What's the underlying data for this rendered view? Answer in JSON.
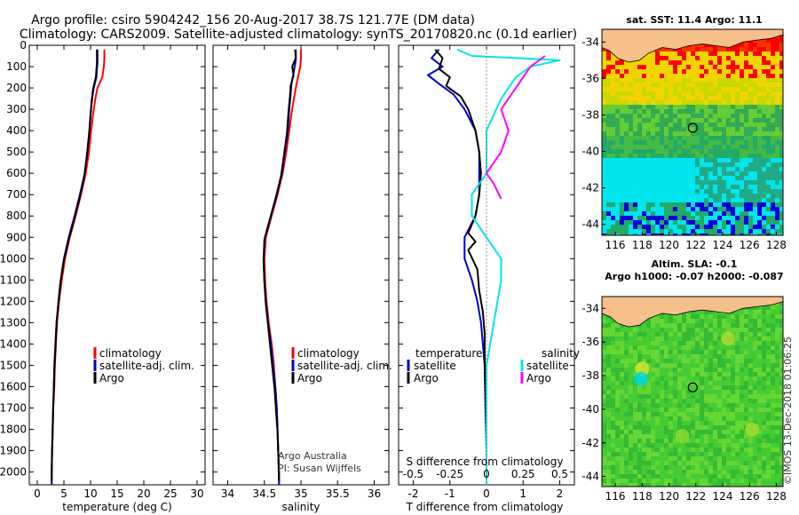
{
  "header": {
    "line1": "Argo profile: csiro 5904242_156 20-Aug-2017 38.7S 121.77E (DM data)",
    "line2": "Climatology: CARS2009. Satellite-adjusted climatology: synTS_20170820.nc (0.1d earlier)"
  },
  "colors": {
    "climatology": "#ff0000",
    "satellite": "#0000cc",
    "argo": "#000000",
    "salinity_satellite": "#00e5ee",
    "salinity_argo": "#ff00ff",
    "land": "#f5c08a"
  },
  "depth_axis": {
    "ticks": [
      0,
      100,
      200,
      300,
      400,
      500,
      600,
      700,
      800,
      900,
      1000,
      1100,
      1200,
      1300,
      1400,
      1500,
      1600,
      1700,
      1800,
      1900,
      2000
    ],
    "range": [
      2060,
      0
    ]
  },
  "chart_data": [
    {
      "type": "line",
      "id": "temperature",
      "xlabel": "temperature (deg C)",
      "xticks": [
        0,
        5,
        10,
        15,
        20,
        25,
        30
      ],
      "xlim": [
        -1.5,
        31.5
      ],
      "legend": [
        "climatology",
        "satellite-adj. clim.",
        "Argo"
      ],
      "series": [
        {
          "name": "climatology",
          "color": "#ff0000",
          "points": [
            [
              12.6,
              20
            ],
            [
              12.6,
              60
            ],
            [
              12.5,
              100
            ],
            [
              12.2,
              150
            ],
            [
              11.3,
              200
            ],
            [
              10.9,
              250
            ],
            [
              10.5,
              320
            ],
            [
              10.1,
              400
            ],
            [
              9.7,
              500
            ],
            [
              9.1,
              600
            ],
            [
              8.2,
              700
            ],
            [
              7.2,
              800
            ],
            [
              6.1,
              900
            ],
            [
              5.2,
              1000
            ],
            [
              4.6,
              1100
            ],
            [
              4.1,
              1200
            ],
            [
              3.7,
              1300
            ],
            [
              3.5,
              1400
            ],
            [
              3.3,
              1500
            ],
            [
              3.2,
              1600
            ],
            [
              3.0,
              1700
            ],
            [
              2.9,
              1800
            ],
            [
              2.8,
              1900
            ],
            [
              2.7,
              2000
            ],
            [
              2.7,
              2060
            ]
          ]
        },
        {
          "name": "satellite-adj. clim.",
          "color": "#0000cc",
          "points": [
            [
              11.3,
              20
            ],
            [
              11.3,
              80
            ],
            [
              11.1,
              150
            ],
            [
              10.6,
              200
            ],
            [
              10.3,
              250
            ],
            [
              10.0,
              320
            ],
            [
              9.8,
              400
            ],
            [
              9.4,
              500
            ],
            [
              8.9,
              600
            ],
            [
              8.0,
              700
            ],
            [
              7.0,
              800
            ],
            [
              5.9,
              900
            ],
            [
              5.0,
              1000
            ],
            [
              4.4,
              1100
            ],
            [
              4.0,
              1200
            ],
            [
              3.6,
              1300
            ],
            [
              3.4,
              1400
            ],
            [
              3.2,
              1500
            ],
            [
              3.1,
              1600
            ],
            [
              3.0,
              1700
            ],
            [
              2.9,
              1800
            ],
            [
              2.8,
              1900
            ],
            [
              2.7,
              2000
            ],
            [
              2.7,
              2060
            ]
          ]
        },
        {
          "name": "Argo",
          "color": "#000000",
          "points": [
            [
              11.2,
              20
            ],
            [
              11.2,
              80
            ],
            [
              11.0,
              150
            ],
            [
              10.5,
              200
            ],
            [
              10.2,
              260
            ],
            [
              10.0,
              330
            ],
            [
              9.7,
              420
            ],
            [
              9.3,
              520
            ],
            [
              8.8,
              620
            ],
            [
              7.9,
              720
            ],
            [
              6.9,
              820
            ],
            [
              5.8,
              920
            ],
            [
              4.9,
              1020
            ],
            [
              4.3,
              1120
            ],
            [
              3.9,
              1220
            ],
            [
              3.6,
              1320
            ],
            [
              3.4,
              1420
            ],
            [
              3.2,
              1520
            ],
            [
              3.1,
              1620
            ],
            [
              2.95,
              1720
            ],
            [
              2.85,
              1820
            ],
            [
              2.75,
              1920
            ],
            [
              2.7,
              2040
            ]
          ]
        }
      ]
    },
    {
      "type": "line",
      "id": "salinity",
      "xlabel": "salinity",
      "xticks": [
        34,
        34.5,
        35,
        35.5,
        36
      ],
      "xticklabels": [
        "34",
        "34.5",
        "35",
        "35.5",
        "36"
      ],
      "xlim": [
        33.8,
        36.2
      ],
      "legend": [
        "climatology",
        "satellite-adj. clim.",
        "Argo"
      ],
      "series": [
        {
          "name": "climatology",
          "color": "#ff0000",
          "points": [
            [
              35.0,
              20
            ],
            [
              35.0,
              60
            ],
            [
              34.99,
              100
            ],
            [
              34.96,
              150
            ],
            [
              34.93,
              200
            ],
            [
              34.9,
              260
            ],
            [
              34.87,
              320
            ],
            [
              34.84,
              400
            ],
            [
              34.8,
              500
            ],
            [
              34.75,
              600
            ],
            [
              34.68,
              700
            ],
            [
              34.6,
              800
            ],
            [
              34.52,
              900
            ],
            [
              34.5,
              1000
            ],
            [
              34.51,
              1100
            ],
            [
              34.53,
              1200
            ],
            [
              34.56,
              1300
            ],
            [
              34.6,
              1400
            ],
            [
              34.63,
              1500
            ],
            [
              34.65,
              1600
            ],
            [
              34.67,
              1700
            ],
            [
              34.68,
              1800
            ],
            [
              34.69,
              1900
            ],
            [
              34.7,
              2000
            ],
            [
              34.7,
              2060
            ]
          ]
        },
        {
          "name": "satellite-adj. clim.",
          "color": "#0000cc",
          "points": [
            [
              34.93,
              20
            ],
            [
              34.93,
              70
            ],
            [
              34.9,
              130
            ],
            [
              34.87,
              180
            ],
            [
              34.86,
              230
            ],
            [
              34.84,
              300
            ],
            [
              34.82,
              400
            ],
            [
              34.78,
              500
            ],
            [
              34.74,
              600
            ],
            [
              34.67,
              700
            ],
            [
              34.59,
              800
            ],
            [
              34.51,
              900
            ],
            [
              34.49,
              1000
            ],
            [
              34.5,
              1100
            ],
            [
              34.52,
              1200
            ],
            [
              34.55,
              1300
            ],
            [
              34.59,
              1400
            ],
            [
              34.62,
              1500
            ],
            [
              34.65,
              1600
            ],
            [
              34.67,
              1700
            ],
            [
              34.68,
              1800
            ],
            [
              34.69,
              1900
            ],
            [
              34.7,
              2000
            ],
            [
              34.7,
              2060
            ]
          ]
        },
        {
          "name": "Argo",
          "color": "#000000",
          "points": [
            [
              34.92,
              20
            ],
            [
              34.93,
              60
            ],
            [
              34.88,
              100
            ],
            [
              34.9,
              140
            ],
            [
              34.86,
              190
            ],
            [
              34.85,
              240
            ],
            [
              34.83,
              310
            ],
            [
              34.81,
              410
            ],
            [
              34.77,
              510
            ],
            [
              34.73,
              610
            ],
            [
              34.66,
              710
            ],
            [
              34.58,
              810
            ],
            [
              34.5,
              910
            ],
            [
              34.49,
              1010
            ],
            [
              34.5,
              1110
            ],
            [
              34.52,
              1210
            ],
            [
              34.55,
              1310
            ],
            [
              34.58,
              1410
            ],
            [
              34.61,
              1510
            ],
            [
              34.64,
              1610
            ],
            [
              34.66,
              1710
            ],
            [
              34.68,
              1810
            ],
            [
              34.69,
              1910
            ],
            [
              34.7,
              2040
            ]
          ]
        }
      ]
    },
    {
      "type": "line",
      "id": "differences",
      "xlabel": "T difference from climatology",
      "xticks": [
        -2,
        -1,
        0,
        1,
        2
      ],
      "xticklabels": [
        "-2",
        "-1",
        "0",
        "1",
        "2"
      ],
      "xlim": [
        -2.4,
        2.4
      ],
      "s_xlabel": "S difference from climatology",
      "s_xticklabels": [
        "-0.5",
        "-0.25",
        "0",
        "0.25",
        "0.5"
      ],
      "legend_left_title": "temperature",
      "legend_right_title": "salinity",
      "legend": [
        "satellite",
        "Argo",
        "satellite",
        "Argo"
      ],
      "series": [
        {
          "name": "satellite",
          "group": "temperature",
          "color": "#0000cc",
          "points": [
            [
              -1.3,
              20
            ],
            [
              -1.5,
              60
            ],
            [
              -1.2,
              100
            ],
            [
              -1.6,
              140
            ],
            [
              -1.3,
              180
            ],
            [
              -0.9,
              230
            ],
            [
              -0.6,
              300
            ],
            [
              -0.3,
              400
            ],
            [
              -0.2,
              500
            ],
            [
              -0.2,
              600
            ],
            [
              -0.2,
              700
            ],
            [
              -0.3,
              800
            ],
            [
              -0.6,
              900
            ],
            [
              -0.6,
              1000
            ],
            [
              -0.4,
              1100
            ],
            [
              -0.25,
              1200
            ],
            [
              -0.15,
              1300
            ],
            [
              -0.1,
              1400
            ],
            [
              -0.05,
              1500
            ],
            [
              -0.03,
              1700
            ],
            [
              0,
              1900
            ],
            [
              0,
              2060
            ]
          ]
        },
        {
          "name": "Argo",
          "group": "temperature",
          "color": "#000000",
          "points": [
            [
              -1.4,
              20
            ],
            [
              -1.2,
              60
            ],
            [
              -1.3,
              110
            ],
            [
              -1.0,
              150
            ],
            [
              -1.1,
              190
            ],
            [
              -0.7,
              240
            ],
            [
              -0.5,
              300
            ],
            [
              -0.3,
              400
            ],
            [
              -0.2,
              500
            ],
            [
              -0.15,
              600
            ],
            [
              -0.2,
              700
            ],
            [
              -0.3,
              800
            ],
            [
              -0.5,
              880
            ],
            [
              -0.3,
              920
            ],
            [
              -0.5,
              960
            ],
            [
              -0.25,
              1050
            ],
            [
              -0.2,
              1150
            ],
            [
              -0.1,
              1250
            ],
            [
              -0.05,
              1350
            ],
            [
              -0.05,
              1450
            ],
            [
              -0.03,
              1600
            ],
            [
              0,
              1800
            ],
            [
              0,
              2040
            ]
          ]
        },
        {
          "name": "satellite",
          "group": "salinity",
          "color": "#00e5ee",
          "points": [
            [
              -0.2,
              20
            ],
            [
              -0.1,
              50
            ],
            [
              0.5,
              70
            ],
            [
              0.3,
              100
            ],
            [
              0.2,
              150
            ],
            [
              0.1,
              250
            ],
            [
              0.0,
              400
            ],
            [
              0.0,
              600
            ],
            [
              -0.1,
              700
            ],
            [
              -0.1,
              800
            ],
            [
              0.0,
              900
            ],
            [
              0.1,
              1000
            ],
            [
              0.1,
              1100
            ],
            [
              0.05,
              1300
            ],
            [
              0.0,
              1500
            ],
            [
              0.0,
              1800
            ],
            [
              0.0,
              2060
            ]
          ]
        },
        {
          "name": "Argo",
          "group": "salinity",
          "color": "#ff00ff",
          "points": [
            [
              0.4,
              50
            ],
            [
              0.3,
              100
            ],
            [
              0.2,
              200
            ],
            [
              0.1,
              300
            ],
            [
              0.15,
              400
            ],
            [
              0.1,
              500
            ],
            [
              0.0,
              600
            ],
            [
              0.05,
              650
            ],
            [
              0.1,
              720
            ]
          ]
        }
      ]
    }
  ],
  "maps": [
    {
      "id": "sst-map",
      "title": "sat. SST: 11.4 Argo: 11.1",
      "subtitle": "",
      "xticks": [
        "116",
        "118",
        "120",
        "122",
        "124",
        "126",
        "128"
      ],
      "yticks": [
        "-34",
        "-36",
        "-38",
        "-40",
        "-42",
        "-44"
      ]
    },
    {
      "id": "sla-map",
      "title": "Altim. SLA: -0.1",
      "subtitle": "Argo h1000: -0.07 h2000: -0.087",
      "xticks": [
        "116",
        "118",
        "120",
        "122",
        "124",
        "126",
        "128"
      ],
      "yticks": [
        "-34",
        "-36",
        "-38",
        "-40",
        "-42",
        "-44"
      ]
    }
  ],
  "credits": {
    "line1": "Argo Australia",
    "line2": "PI: Susan Wijffels",
    "imos": "©IMOS 13-Dec-2018 01:06:25"
  }
}
